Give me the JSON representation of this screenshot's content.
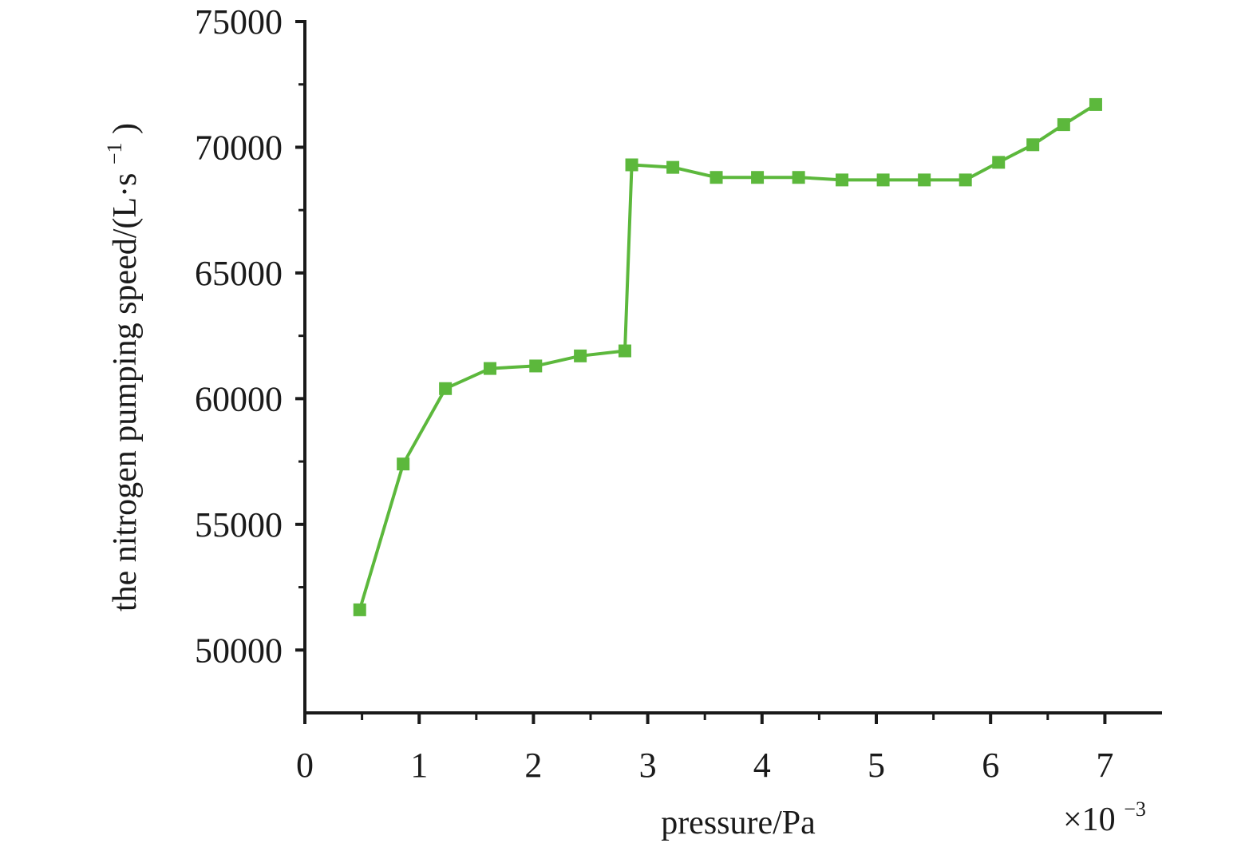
{
  "chart_data": {
    "type": "line",
    "xlabel": "pressure/Pa",
    "ylabel_main": "the nitrogen pumping speed/(L·s",
    "ylabel_sup": "−1",
    "ylabel_close": ")",
    "x_multiplier_main": "×10",
    "x_multiplier_sup": "−3",
    "xlim": [
      0,
      7.5
    ],
    "ylim": [
      47500,
      75000
    ],
    "x_ticks": [
      0,
      1,
      2,
      3,
      4,
      5,
      6,
      7
    ],
    "x_tick_labels": [
      "0",
      "1",
      "2",
      "3",
      "4",
      "5",
      "6",
      "7"
    ],
    "y_ticks": [
      50000,
      55000,
      60000,
      65000,
      70000,
      75000
    ],
    "y_tick_labels": [
      "50000",
      "55000",
      "60000",
      "65000",
      "70000",
      "75000"
    ],
    "grid": false,
    "legend": false,
    "series": [
      {
        "color": "#5cb83c",
        "marker": "square",
        "points": [
          [
            0.48,
            51600
          ],
          [
            0.86,
            57400
          ],
          [
            1.23,
            60400
          ],
          [
            1.62,
            61200
          ],
          [
            2.02,
            61300
          ],
          [
            2.41,
            61700
          ],
          [
            2.8,
            61900
          ],
          [
            2.86,
            69300
          ],
          [
            3.22,
            69200
          ],
          [
            3.6,
            68800
          ],
          [
            3.96,
            68800
          ],
          [
            4.32,
            68800
          ],
          [
            4.7,
            68700
          ],
          [
            5.06,
            68700
          ],
          [
            5.42,
            68700
          ],
          [
            5.78,
            68700
          ],
          [
            6.07,
            69400
          ],
          [
            6.37,
            70100
          ],
          [
            6.64,
            70900
          ],
          [
            6.92,
            71700
          ]
        ]
      }
    ]
  }
}
